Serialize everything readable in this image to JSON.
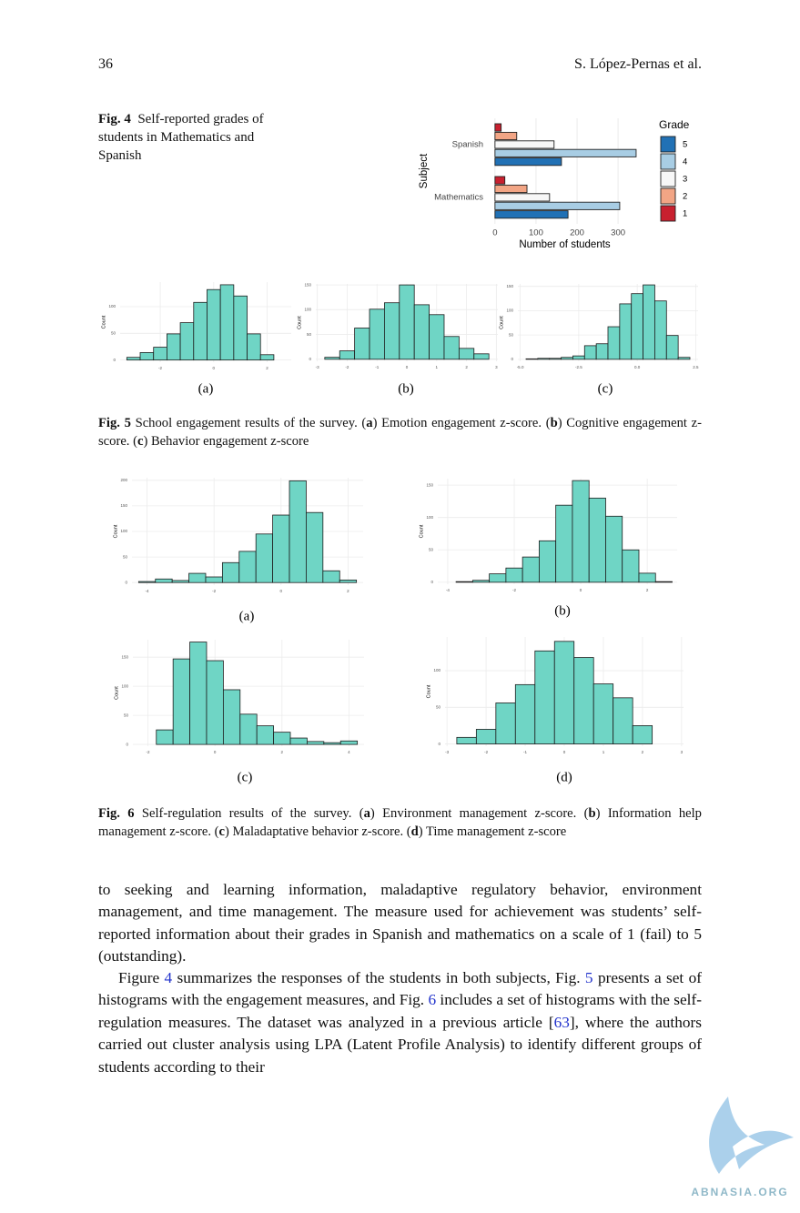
{
  "header": {
    "page_number": "36",
    "authors": "S. López-Pernas et al."
  },
  "figure_4": {
    "label": "Fig. 4",
    "caption": "Self-reported grades of students in Mathematics and Spanish"
  },
  "figure_5": {
    "caption": [
      "Fig. 5",
      "  School engagement results of the survey. (",
      "a",
      ") Emotion engagement z-score. (",
      "b",
      ") Cognitive engagement z-score. (",
      "c",
      ") Behavior engagement z-score"
    ]
  },
  "figure_6": {
    "caption": [
      "Fig. 6",
      "  Self-regulation results of the survey. (",
      "a",
      ") Environment management z-score. (",
      "b",
      ") Information help management z-score. (",
      "c",
      ") Maladaptative behavior z-score. (",
      "d",
      ") Time management z-score"
    ]
  },
  "chart_data": [
    {
      "type": "hbar",
      "xlabel": "Number of students",
      "ylabel": "Subject",
      "legend_title": "Grade",
      "legend": "right",
      "categories": [
        "Spanish",
        "Mathematics"
      ],
      "series": [
        {
          "name": "1",
          "color": "#c8202f",
          "values": [
            15,
            24
          ]
        },
        {
          "name": "2",
          "color": "#f2a585",
          "values": [
            53,
            78
          ]
        },
        {
          "name": "3",
          "color": "#f7f7f7",
          "values": [
            144,
            133
          ]
        },
        {
          "name": "4",
          "color": "#a8cde4",
          "values": [
            344,
            304
          ]
        },
        {
          "name": "5",
          "color": "#2171b5",
          "values": [
            162,
            178
          ]
        }
      ],
      "xlim": [
        -13,
        353
      ],
      "xticks": [
        0,
        100,
        200,
        300
      ],
      "grid": true
    },
    {
      "type": "histogram",
      "subcaption": "(a)",
      "ylabel": "Count",
      "color": "#6fd5c5",
      "grid": true,
      "bins": [
        -3.25,
        -2.75,
        -2.25,
        -1.75,
        -1.25,
        -0.75,
        -0.25,
        0.25,
        0.75,
        1.25,
        1.75,
        2.25
      ],
      "values": [
        5,
        14,
        24,
        49,
        70,
        108,
        132,
        141,
        120,
        49,
        10
      ],
      "xlim": [
        -3.5,
        2.9
      ],
      "xticks": [
        -2,
        0,
        2
      ],
      "ylim": [
        -4,
        146
      ],
      "yticks": [
        0,
        50,
        100
      ]
    },
    {
      "type": "histogram",
      "subcaption": "(b)",
      "ylabel": "Count",
      "color": "#6fd5c5",
      "grid": true,
      "bins": [
        -2.75,
        -2.25,
        -1.75,
        -1.25,
        -0.75,
        -0.25,
        0.25,
        0.75,
        1.25,
        1.75,
        2.25,
        2.75
      ],
      "values": [
        4,
        17,
        63,
        101,
        114,
        150,
        110,
        90,
        46,
        22,
        11
      ],
      "xlim": [
        -3.05,
        3.05
      ],
      "xticks": [
        -3,
        -2,
        -1,
        0,
        1,
        2,
        3
      ],
      "ylim": [
        -4,
        152
      ],
      "yticks": [
        0,
        50,
        100,
        150
      ]
    },
    {
      "type": "histogram",
      "subcaption": "(c)",
      "ylabel": "Count",
      "color": "#6fd5c5",
      "grid": true,
      "bins": [
        -4.75,
        -4.25,
        -3.75,
        -3.25,
        -2.75,
        -2.25,
        -1.75,
        -1.25,
        -0.75,
        -0.25,
        0.25,
        0.75,
        1.25,
        1.75,
        2.25
      ],
      "values": [
        1,
        2,
        2,
        4,
        7,
        28,
        32,
        67,
        114,
        135,
        153,
        120,
        49,
        4
      ],
      "xlim": [
        -5.1,
        2.6
      ],
      "xticks": [
        {
          "value": -5,
          "label": "-5.0"
        },
        -2.5,
        {
          "value": 0,
          "label": "0.0"
        },
        2.5
      ],
      "ylim": [
        -4,
        155
      ],
      "yticks": [
        0,
        50,
        100,
        150
      ]
    },
    {
      "type": "histogram",
      "subcaption": "(a)",
      "ylabel": "Count",
      "color": "#6fd5c5",
      "grid": true,
      "bins": [
        -4.25,
        -3.75,
        -3.25,
        -2.75,
        -2.25,
        -1.75,
        -1.25,
        -0.75,
        -0.25,
        0.25,
        0.75,
        1.25,
        1.75,
        2.25
      ],
      "values": [
        2,
        7,
        4,
        18,
        11,
        39,
        61,
        95,
        132,
        199,
        137,
        23,
        5
      ],
      "xlim": [
        -4.45,
        2.45
      ],
      "xticks": [
        -4,
        -2,
        0,
        2
      ],
      "ylim": [
        -5,
        205
      ],
      "yticks": [
        0,
        50,
        100,
        150,
        200
      ]
    },
    {
      "type": "histogram",
      "subcaption": "(b)",
      "ylabel": "Count",
      "color": "#6fd5c5",
      "grid": true,
      "bins": [
        -3.75,
        -3.25,
        -2.75,
        -2.25,
        -1.75,
        -1.25,
        -0.75,
        -0.25,
        0.25,
        0.75,
        1.25,
        1.75,
        2.25,
        2.75
      ],
      "values": [
        1,
        3,
        13,
        22,
        39,
        64,
        119,
        157,
        130,
        102,
        50,
        14,
        1
      ],
      "xlim": [
        -4.3,
        2.9
      ],
      "xticks": [
        -4,
        -2,
        0,
        2
      ],
      "ylim": [
        -3,
        160
      ],
      "yticks": [
        0,
        50,
        100,
        150
      ]
    },
    {
      "type": "histogram",
      "subcaption": "(c)",
      "ylabel": "Count",
      "color": "#6fd5c5",
      "grid": true,
      "bins": [
        -1.75,
        -1.25,
        -0.75,
        -0.25,
        0.25,
        0.75,
        1.25,
        1.75,
        2.25,
        2.75,
        3.25,
        3.75,
        4.25
      ],
      "values": [
        25,
        147,
        176,
        144,
        94,
        52,
        32,
        21,
        11,
        5,
        3,
        6
      ],
      "xlim": [
        -2.45,
        4.45
      ],
      "xticks": [
        -2,
        0,
        2,
        4
      ],
      "ylim": [
        -3,
        180
      ],
      "yticks": [
        0,
        50,
        100,
        150
      ]
    },
    {
      "type": "histogram",
      "subcaption": "(d)",
      "ylabel": "Count",
      "color": "#6fd5c5",
      "grid": true,
      "bins": [
        -2.75,
        -2.25,
        -1.75,
        -1.25,
        -0.75,
        -0.25,
        0.25,
        0.75,
        1.25,
        1.75,
        2.25
      ],
      "values": [
        9,
        20,
        56,
        81,
        127,
        140,
        118,
        82,
        63,
        25
      ],
      "xlim": [
        -3.05,
        3.05
      ],
      "xticks": [
        -3,
        -2,
        -1,
        0,
        1,
        2,
        3
      ],
      "ylim": [
        -3,
        146
      ],
      "yticks": [
        0,
        50,
        100
      ]
    }
  ],
  "body": {
    "paragraph_1": "to seeking and learning information, maladaptive regulatory behavior, environment management, and time management. The measure used for achievement was students’ self-reported information about their grades in Spanish and mathematics on a scale of 1 (fail) to 5 (outstanding).",
    "paragraph_2": [
      "Figure ",
      "4",
      " summarizes the responses of the students in both subjects, Fig. ",
      "5",
      " presents a set of histograms with the engagement measures, and Fig. ",
      "6",
      " includes a set of histograms with the self-regulation measures. The dataset was analyzed in a previous article [",
      "63",
      "], where the authors carried out cluster analysis using LPA (Latent Profile Analysis) to identify different groups of students according to their"
    ]
  },
  "watermark": "ABNASIA.ORG"
}
